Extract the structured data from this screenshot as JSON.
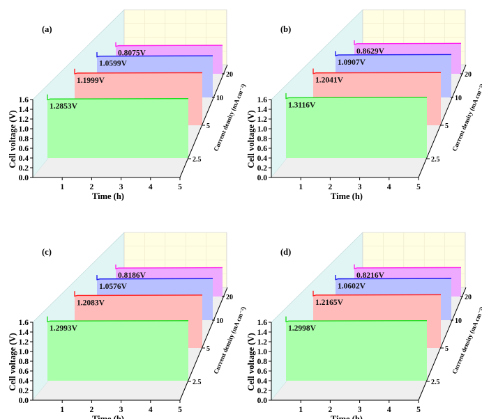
{
  "chart_data": [
    {
      "type": "area",
      "panel_label": "(a)",
      "xlabel": "Time (h)",
      "ylabel": "Cell voltage (V)",
      "zlabel": "Current density (mA cm⁻²)",
      "xlim": [
        0,
        5
      ],
      "ylim": [
        0,
        1.6
      ],
      "x_ticks": [
        "1",
        "2",
        "3",
        "4",
        "5"
      ],
      "y_ticks": [
        "0.0",
        "0.2",
        "0.4",
        "0.6",
        "0.8",
        "1.0",
        "1.2",
        "1.4",
        "1.6"
      ],
      "z_ticks": [
        "2.5",
        "5",
        "10",
        "20"
      ],
      "series": [
        {
          "name": "2.5",
          "voltage": 1.2853,
          "label": "1.2853V"
        },
        {
          "name": "5",
          "voltage": 1.1999,
          "label": "1.1999V"
        },
        {
          "name": "10",
          "voltage": 1.0599,
          "label": "1.0599V"
        },
        {
          "name": "20",
          "voltage": 0.8075,
          "label": "0.8075V"
        }
      ]
    },
    {
      "type": "area",
      "panel_label": "(b)",
      "xlabel": "Time (h)",
      "ylabel": "Cell voltage (V)",
      "zlabel": "Current density (mA cm⁻²)",
      "xlim": [
        0,
        5
      ],
      "ylim": [
        0,
        1.6
      ],
      "x_ticks": [
        "1",
        "2",
        "3",
        "4",
        "5"
      ],
      "y_ticks": [
        "0.0",
        "0.2",
        "0.4",
        "0.6",
        "0.8",
        "1.0",
        "1.2",
        "1.4",
        "1.6"
      ],
      "z_ticks": [
        "2.5",
        "5",
        "10",
        "20"
      ],
      "series": [
        {
          "name": "2.5",
          "voltage": 1.3116,
          "label": "1.3116V"
        },
        {
          "name": "5",
          "voltage": 1.2041,
          "label": "1.2041V"
        },
        {
          "name": "10",
          "voltage": 1.0907,
          "label": "1.0907V"
        },
        {
          "name": "20",
          "voltage": 0.8629,
          "label": "0.8629V"
        }
      ]
    },
    {
      "type": "area",
      "panel_label": "(c)",
      "xlabel": "Time (h)",
      "ylabel": "Cell voltage (V)",
      "zlabel": "Current density (mA cm⁻²)",
      "xlim": [
        0,
        5
      ],
      "ylim": [
        0,
        1.6
      ],
      "x_ticks": [
        "1",
        "2",
        "3",
        "4",
        "5"
      ],
      "y_ticks": [
        "0.0",
        "0.2",
        "0.4",
        "0.6",
        "0.8",
        "1.0",
        "1.2",
        "1.4",
        "1.6"
      ],
      "z_ticks": [
        "2.5",
        "5",
        "10",
        "20"
      ],
      "series": [
        {
          "name": "2.5",
          "voltage": 1.2993,
          "label": "1.2993V"
        },
        {
          "name": "5",
          "voltage": 1.2083,
          "label": "1.2083V"
        },
        {
          "name": "10",
          "voltage": 1.0576,
          "label": "1.0576V"
        },
        {
          "name": "20",
          "voltage": 0.8186,
          "label": "0.8186V"
        }
      ]
    },
    {
      "type": "area",
      "panel_label": "(d)",
      "xlabel": "Time (h)",
      "ylabel": "Cell voltage (V)",
      "zlabel": "Current density (mA cm⁻²)",
      "xlim": [
        0,
        5
      ],
      "ylim": [
        0,
        1.6
      ],
      "x_ticks": [
        "1",
        "2",
        "3",
        "4",
        "5"
      ],
      "y_ticks": [
        "0.0",
        "0.2",
        "0.4",
        "0.6",
        "0.8",
        "1.0",
        "1.2",
        "1.4",
        "1.6"
      ],
      "z_ticks": [
        "2.5",
        "5",
        "10",
        "20"
      ],
      "series": [
        {
          "name": "2.5",
          "voltage": 1.2998,
          "label": "1.2998V"
        },
        {
          "name": "5",
          "voltage": 1.2165,
          "label": "1.2165V"
        },
        {
          "name": "10",
          "voltage": 1.0602,
          "label": "1.0602V"
        },
        {
          "name": "20",
          "voltage": 0.8216,
          "label": "0.8216V"
        }
      ]
    }
  ],
  "colors": {
    "series_fill": [
      "#aaffaa",
      "#ffbaba",
      "#b8c0ff",
      "#eeaaff"
    ],
    "series_line": [
      "#22dd22",
      "#ff2020",
      "#1a1aee",
      "#ff22ee"
    ],
    "back_wall": "#fffde2",
    "left_wall": "#e2f5f5",
    "floor": "#efefef"
  }
}
